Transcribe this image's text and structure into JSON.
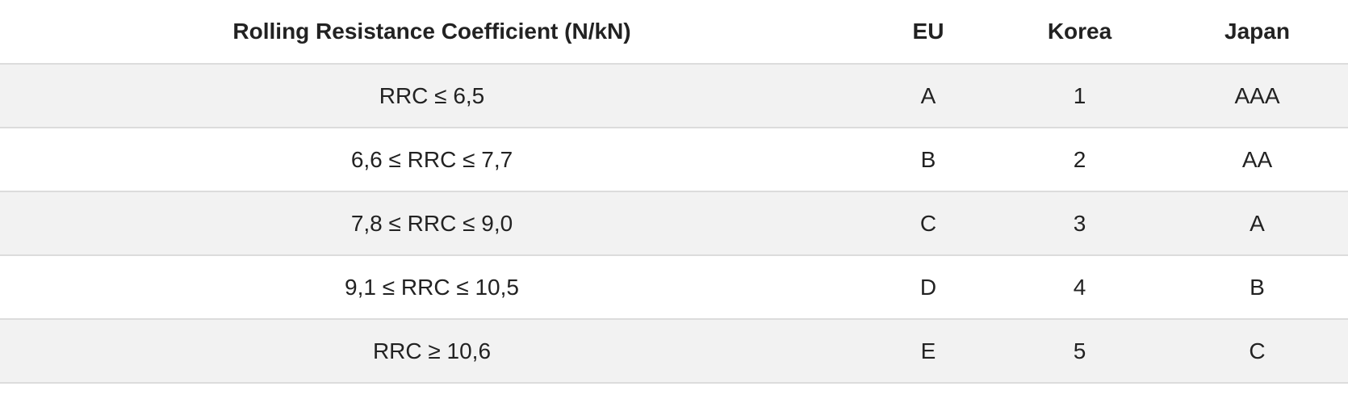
{
  "table": {
    "header": [
      "Rolling Resistance Coefficient (N/kN)",
      "EU",
      "Korea",
      "Japan"
    ],
    "rows": [
      [
        "RRC ≤ 6,5",
        "A",
        1,
        "AAA"
      ],
      [
        "6,6 ≤ RRC ≤ 7,7",
        "B",
        2,
        "AA"
      ],
      [
        "7,8 ≤ RRC ≤ 9,0",
        "C",
        3,
        "A"
      ],
      [
        "9,1 ≤ RRC ≤ 10,5",
        "D",
        4,
        "B"
      ],
      [
        "RRC ≥ 10,6",
        "E",
        5,
        "C"
      ]
    ]
  }
}
